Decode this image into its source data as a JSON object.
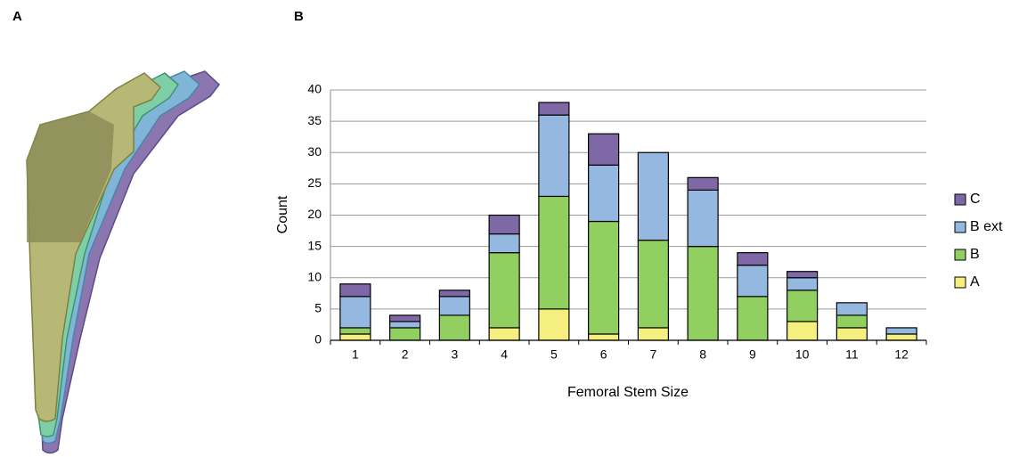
{
  "panel_labels": [
    "A",
    "B"
  ],
  "chart_data": {
    "type": "stacked_bar",
    "x_label": "Femoral Stem Size",
    "y_label": "Count",
    "categories": [
      "1",
      "2",
      "3",
      "4",
      "5",
      "6",
      "7",
      "8",
      "9",
      "10",
      "11",
      "12"
    ],
    "series": [
      {
        "name": "A",
        "color": "#f5ef80",
        "values": [
          1,
          0,
          0,
          2,
          5,
          1,
          2,
          0,
          0,
          3,
          2,
          1
        ]
      },
      {
        "name": "B",
        "color": "#92cf61",
        "values": [
          1,
          2,
          4,
          12,
          18,
          18,
          14,
          15,
          7,
          5,
          2,
          0
        ]
      },
      {
        "name": "B ext",
        "color": "#95b8e0",
        "values": [
          5,
          1,
          3,
          3,
          13,
          9,
          14,
          9,
          5,
          2,
          2,
          1
        ]
      },
      {
        "name": "C",
        "color": "#7e68a6",
        "values": [
          2,
          1,
          1,
          3,
          2,
          5,
          0,
          2,
          2,
          1,
          0,
          0
        ]
      }
    ],
    "ylim": [
      0,
      40
    ],
    "yticks": [
      0,
      5,
      10,
      15,
      20,
      25,
      30,
      35,
      40
    ],
    "grid": true,
    "legend": "right"
  }
}
